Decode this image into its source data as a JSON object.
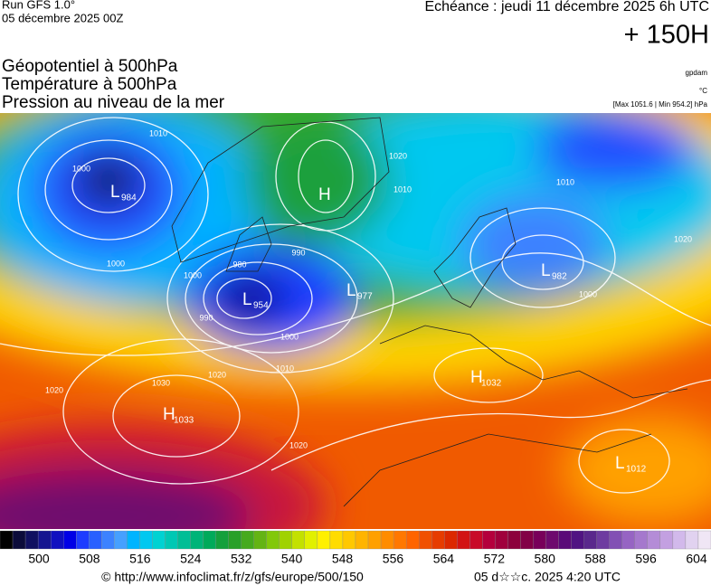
{
  "header": {
    "run": "Run GFS 1.0°",
    "run_date": "05 décembre 2025 00Z",
    "valid": "Echéance : jeudi 11 décembre 2025 6h UTC",
    "lead": "+ 150H",
    "fields": [
      "Géopotentiel à 500hPa",
      "Température à 500hPa",
      "Pression au niveau de la mer"
    ],
    "units": [
      "gpdam",
      "°C",
      "[Max 1051.6 | Min 954.2] hPa"
    ]
  },
  "map": {
    "centers": [
      {
        "letter": "L",
        "value": 984
      },
      {
        "letter": "H",
        "value": null
      },
      {
        "letter": "L",
        "value": 954
      },
      {
        "letter": "L",
        "value": 977
      },
      {
        "letter": "L",
        "value": 982
      },
      {
        "letter": "H",
        "value": 1033
      },
      {
        "letter": "H",
        "value": 1032
      },
      {
        "letter": "L",
        "value": 1012
      }
    ],
    "isobar_labels": [
      1010,
      1000,
      1000,
      1000,
      1010,
      990,
      980,
      1000,
      1010,
      1020,
      1020,
      1020,
      1010,
      1000,
      1020,
      990,
      1030,
      1020
    ]
  },
  "colorbar": {
    "labels": [
      500,
      508,
      516,
      524,
      532,
      540,
      548,
      556,
      564,
      572,
      580,
      588,
      596,
      604
    ],
    "colors": [
      "#000000",
      "#0b0b3a",
      "#101060",
      "#151590",
      "#1010c0",
      "#0000e6",
      "#1e3cff",
      "#2860ff",
      "#3c82ff",
      "#46a0ff",
      "#00b4ff",
      "#00c8f0",
      "#00d2d2",
      "#00c8b4",
      "#00be96",
      "#00b478",
      "#00aa5a",
      "#14a03c",
      "#28a028",
      "#46aa1e",
      "#64b414",
      "#82c80a",
      "#a0d200",
      "#c3e100",
      "#e1f000",
      "#fff000",
      "#ffdc00",
      "#ffc800",
      "#ffb400",
      "#ffa000",
      "#ff8c00",
      "#ff7800",
      "#ff6400",
      "#f05000",
      "#e63c00",
      "#dc2800",
      "#d21414",
      "#c80a28",
      "#b4003c",
      "#a0003c",
      "#8c003c",
      "#820046",
      "#78005a",
      "#6e0a6e",
      "#5a0a78",
      "#501482",
      "#5a288c",
      "#6e3ca0",
      "#8250b4",
      "#9664c3",
      "#a578cd",
      "#b48cd7",
      "#c3a0e1",
      "#d2b9eb",
      "#e1d2f0",
      "#f0e6f5"
    ]
  },
  "footer": {
    "source": "© http://www.infoclimat.fr/z/gfs/europe/500/150",
    "generated": "05 d☆☆c. 2025  4:20 UTC"
  }
}
